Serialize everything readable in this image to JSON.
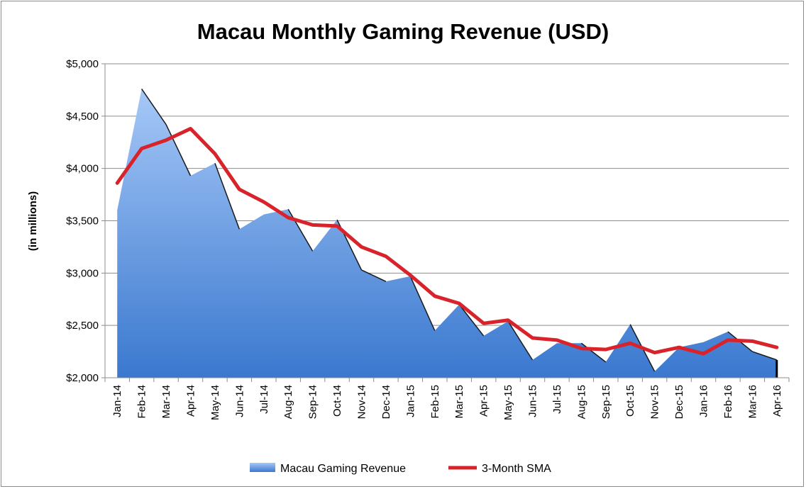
{
  "chart_data": {
    "type": "area",
    "title": "Macau Monthly Gaming Revenue (USD)",
    "xlabel": "",
    "ylabel": "(in millions)",
    "ylim": [
      2000,
      5000
    ],
    "yticks": [
      2000,
      2500,
      3000,
      3500,
      4000,
      4500,
      5000
    ],
    "ytick_labels": [
      "$2,000",
      "$2,500",
      "$3,000",
      "$3,500",
      "$4,000",
      "$4,500",
      "$5,000"
    ],
    "grid": true,
    "legend_position": "bottom",
    "categories": [
      "Jan-14",
      "Feb-14",
      "Mar-14",
      "Apr-14",
      "May-14",
      "Jun-14",
      "Jul-14",
      "Aug-14",
      "Sep-14",
      "Oct-14",
      "Nov-14",
      "Dec-14",
      "Jan-15",
      "Feb-15",
      "Mar-15",
      "Apr-15",
      "May-15",
      "Jun-15",
      "Jul-15",
      "Aug-15",
      "Sep-15",
      "Oct-15",
      "Nov-15",
      "Dec-15",
      "Jan-16",
      "Feb-16",
      "Mar-16",
      "Apr-16"
    ],
    "series": [
      {
        "name": "Macau Gaming Revenue",
        "type": "area",
        "color_top": "#a6c8f7",
        "color_bottom": "#3a78cf",
        "values": [
          3600,
          4760,
          4420,
          3930,
          4050,
          3420,
          3560,
          3610,
          3210,
          3510,
          3030,
          2920,
          2970,
          2450,
          2700,
          2400,
          2540,
          2170,
          2330,
          2330,
          2150,
          2510,
          2060,
          2290,
          2340,
          2440,
          2250,
          2170
        ]
      },
      {
        "name": "3-Month SMA",
        "type": "line",
        "color": "#d9232b",
        "values": [
          3860,
          4190,
          4270,
          4380,
          4140,
          3800,
          3680,
          3530,
          3460,
          3450,
          3250,
          3160,
          2980,
          2780,
          2710,
          2520,
          2550,
          2380,
          2360,
          2280,
          2270,
          2330,
          2240,
          2290,
          2230,
          2360,
          2350,
          2290
        ]
      }
    ]
  }
}
